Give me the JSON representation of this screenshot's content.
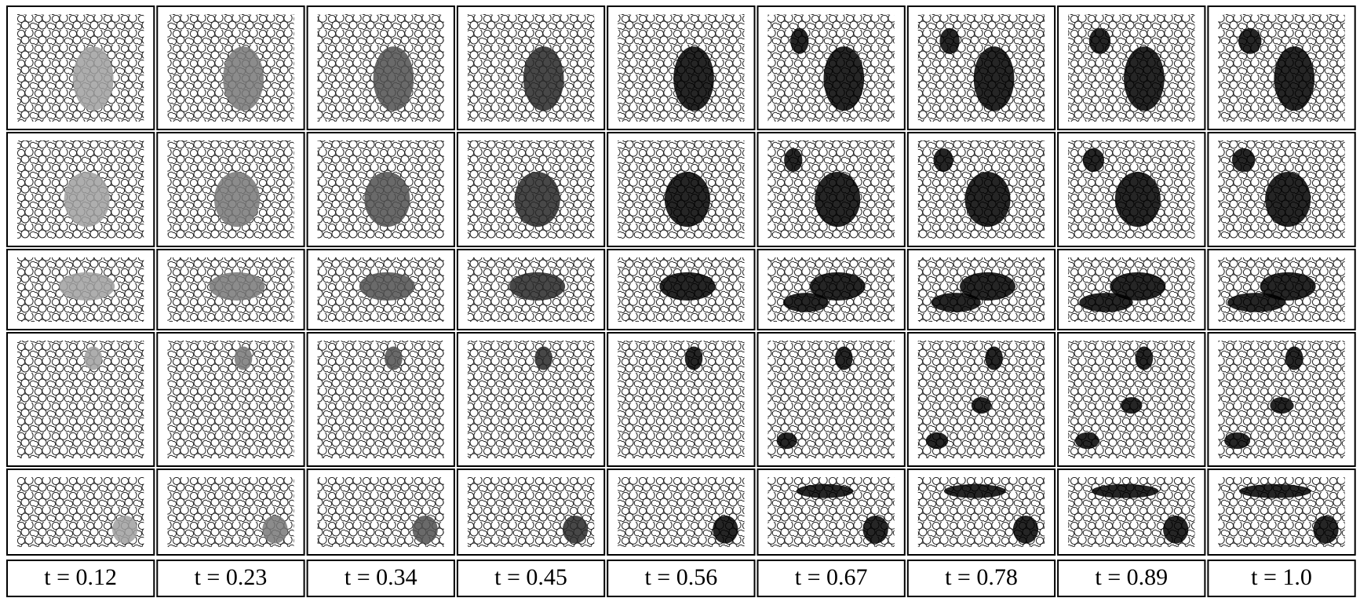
{
  "labels": [
    "t = 0.12",
    "t = 0.23",
    "t = 0.34",
    "t = 0.45",
    "t = 0.56",
    "t = 0.67",
    "t = 0.78",
    "t = 0.89",
    "t = 1.0"
  ]
}
